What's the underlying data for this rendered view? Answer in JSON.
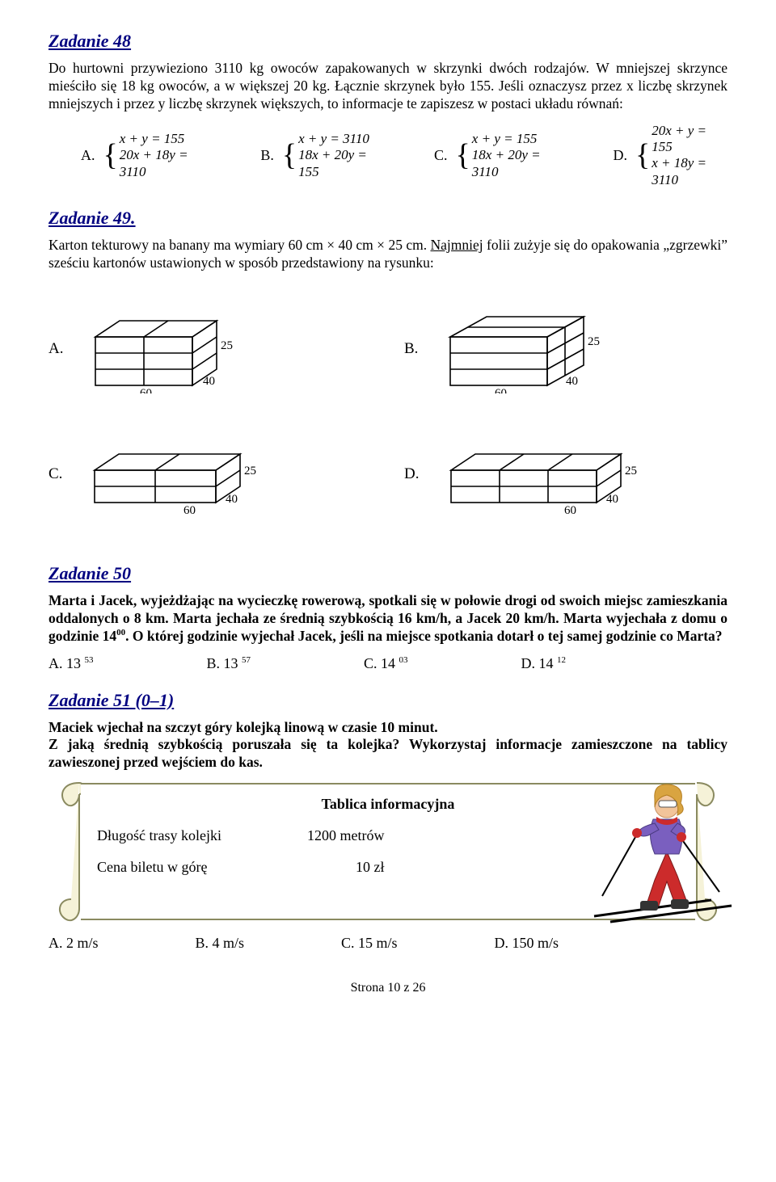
{
  "colors": {
    "heading": "#000080",
    "text": "#000000",
    "background": "#ffffff"
  },
  "fonts": {
    "body_family": "Times New Roman",
    "heading_size_pt": 16,
    "body_size_pt": 13
  },
  "z48": {
    "title": "Zadanie 48",
    "text": "Do hurtowni przywieziono 3110 kg owoców zapakowanych w skrzynki dwóch rodzajów. W mniejszej skrzynce mieściło się 18 kg owoców, a w większej 20 kg. Łącznie skrzynek było 155. Jeśli oznaczysz przez x liczbę skrzynek mniejszych i przez y liczbę skrzynek większych, to informacje te zapiszesz w postaci układu równań:",
    "options": {
      "A": {
        "label": "A.",
        "line1": "x + y = 155",
        "line2": "20x + 18y = 3110"
      },
      "B": {
        "label": "B.",
        "line1": "x + y = 3110",
        "line2": "18x + 20y = 155"
      },
      "C": {
        "label": "C.",
        "line1": "x + y = 155",
        "line2": "18x + 20y = 3110"
      },
      "D": {
        "label": "D.",
        "line1": "20x + y = 155",
        "line2": "x + 18y = 3110"
      }
    }
  },
  "z49": {
    "title": "Zadanie 49.",
    "text": "Karton tekturowy na banany ma wymiary 60 cm × 40 cm × 25 cm. Najmniej folii zużyje się do opakowania „zgrzewki” sześciu kartonów ustawionych w sposób przedstawiony na rysunku:",
    "figures": {
      "A": {
        "label": "A.",
        "dims": {
          "w": "60",
          "d": "40",
          "h": "25"
        },
        "split": "front2x3_top2x1"
      },
      "B": {
        "label": "B.",
        "dims": {
          "w": "60",
          "d": "40",
          "h": "25"
        },
        "split": "front1x3_top2x1_depth2"
      },
      "C": {
        "label": "C.",
        "dims": {
          "w": "60",
          "d": "40",
          "h": "25"
        },
        "split": "front2x2_top2x1_w2"
      },
      "D": {
        "label": "D.",
        "dims": {
          "w": "60",
          "d": "40",
          "h": "25"
        },
        "split": "front1x2_top3x1"
      }
    }
  },
  "z50": {
    "title": "Zadanie 50",
    "text_plain": "Marta i Jacek, wyjeżdżając na wycieczkę rowerową, spotkali się w połowie drogi od swoich  miejsc zamieszkania oddalonych o 8 km. Marta jechała ze średnią szybkością 16 km/h, a Jacek 20 km/h. Marta wyjechała z domu o godzinie 14",
    "sup": "00",
    "text_tail": ". O której godzinie wyjechał Jacek, jeśli na miejsce spotkania dotarł o tej samej godzinie co Marta?",
    "options": {
      "A": {
        "label": "A. 13 ",
        "sup": "53"
      },
      "B": {
        "label": "B. 13 ",
        "sup": "57"
      },
      "C": {
        "label": "C. 14 ",
        "sup": "03"
      },
      "D": {
        "label": "D. 14 ",
        "sup": "12"
      }
    }
  },
  "z51": {
    "title": "Zadanie 51 (0–1)",
    "line1": "Maciek wjechał na szczyt góry kolejką linową w czasie 10 minut.",
    "line2": "Z jaką średnią szybkością poruszała się ta kolejka? Wykorzystaj informacje zamieszczone na tablicy zawieszonej przed wejściem do kas.",
    "panel": {
      "title": "Tablica informacyjna",
      "row1_label": "Długość trasy  kolejki",
      "row1_value": "1200 metrów",
      "row2_label": "Cena biletu w górę",
      "row2_value": "10 zł"
    },
    "options": {
      "A": "A. 2 m/s",
      "B": "B. 4 m/s",
      "C": "C. 15 m/s",
      "D": "D. 150 m/s"
    }
  },
  "footer": "Strona 10 z 26"
}
